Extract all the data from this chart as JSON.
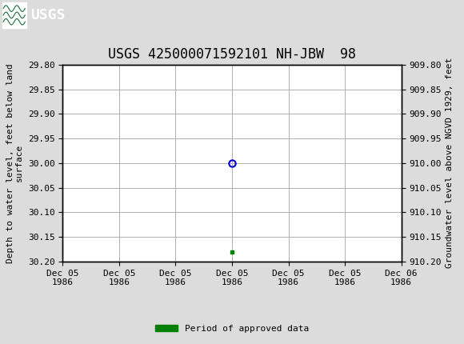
{
  "title": "USGS 425000071592101 NH-JBW  98",
  "title_fontsize": 12,
  "header_color": "#1a6b3c",
  "bg_color": "#dcdcdc",
  "plot_bg_color": "#ffffff",
  "grid_color": "#b0b0b0",
  "left_ylabel": "Depth to water level, feet below land\nsurface",
  "right_ylabel": "Groundwater level above NGVD 1929, feet",
  "ylim_left": [
    29.8,
    30.2
  ],
  "ylim_right": [
    909.8,
    910.2
  ],
  "yticks_left": [
    29.8,
    29.85,
    29.9,
    29.95,
    30.0,
    30.05,
    30.1,
    30.15,
    30.2
  ],
  "yticks_right": [
    909.8,
    909.85,
    909.9,
    909.95,
    910.0,
    910.05,
    910.1,
    910.15,
    910.2
  ],
  "data_point_y": 30.0,
  "data_point_color": "#0000cc",
  "data_point_markersize": 6,
  "green_square_y": 30.18,
  "green_square_color": "#008000",
  "green_square_markersize": 3,
  "xtick_labels": [
    "Dec 05\n1986",
    "Dec 05\n1986",
    "Dec 05\n1986",
    "Dec 05\n1986",
    "Dec 05\n1986",
    "Dec 05\n1986",
    "Dec 06\n1986"
  ],
  "xlim_start": 0,
  "xlim_end": 6,
  "data_x": 3.0,
  "legend_label": "Period of approved data",
  "legend_color": "#008000",
  "font_family": "DejaVu Sans Mono",
  "axis_label_fontsize": 8,
  "tick_fontsize": 8,
  "usgs_text": "USGS",
  "usgs_header_text_color": "#ffffff",
  "usgs_logo_bg": "#ffffff"
}
